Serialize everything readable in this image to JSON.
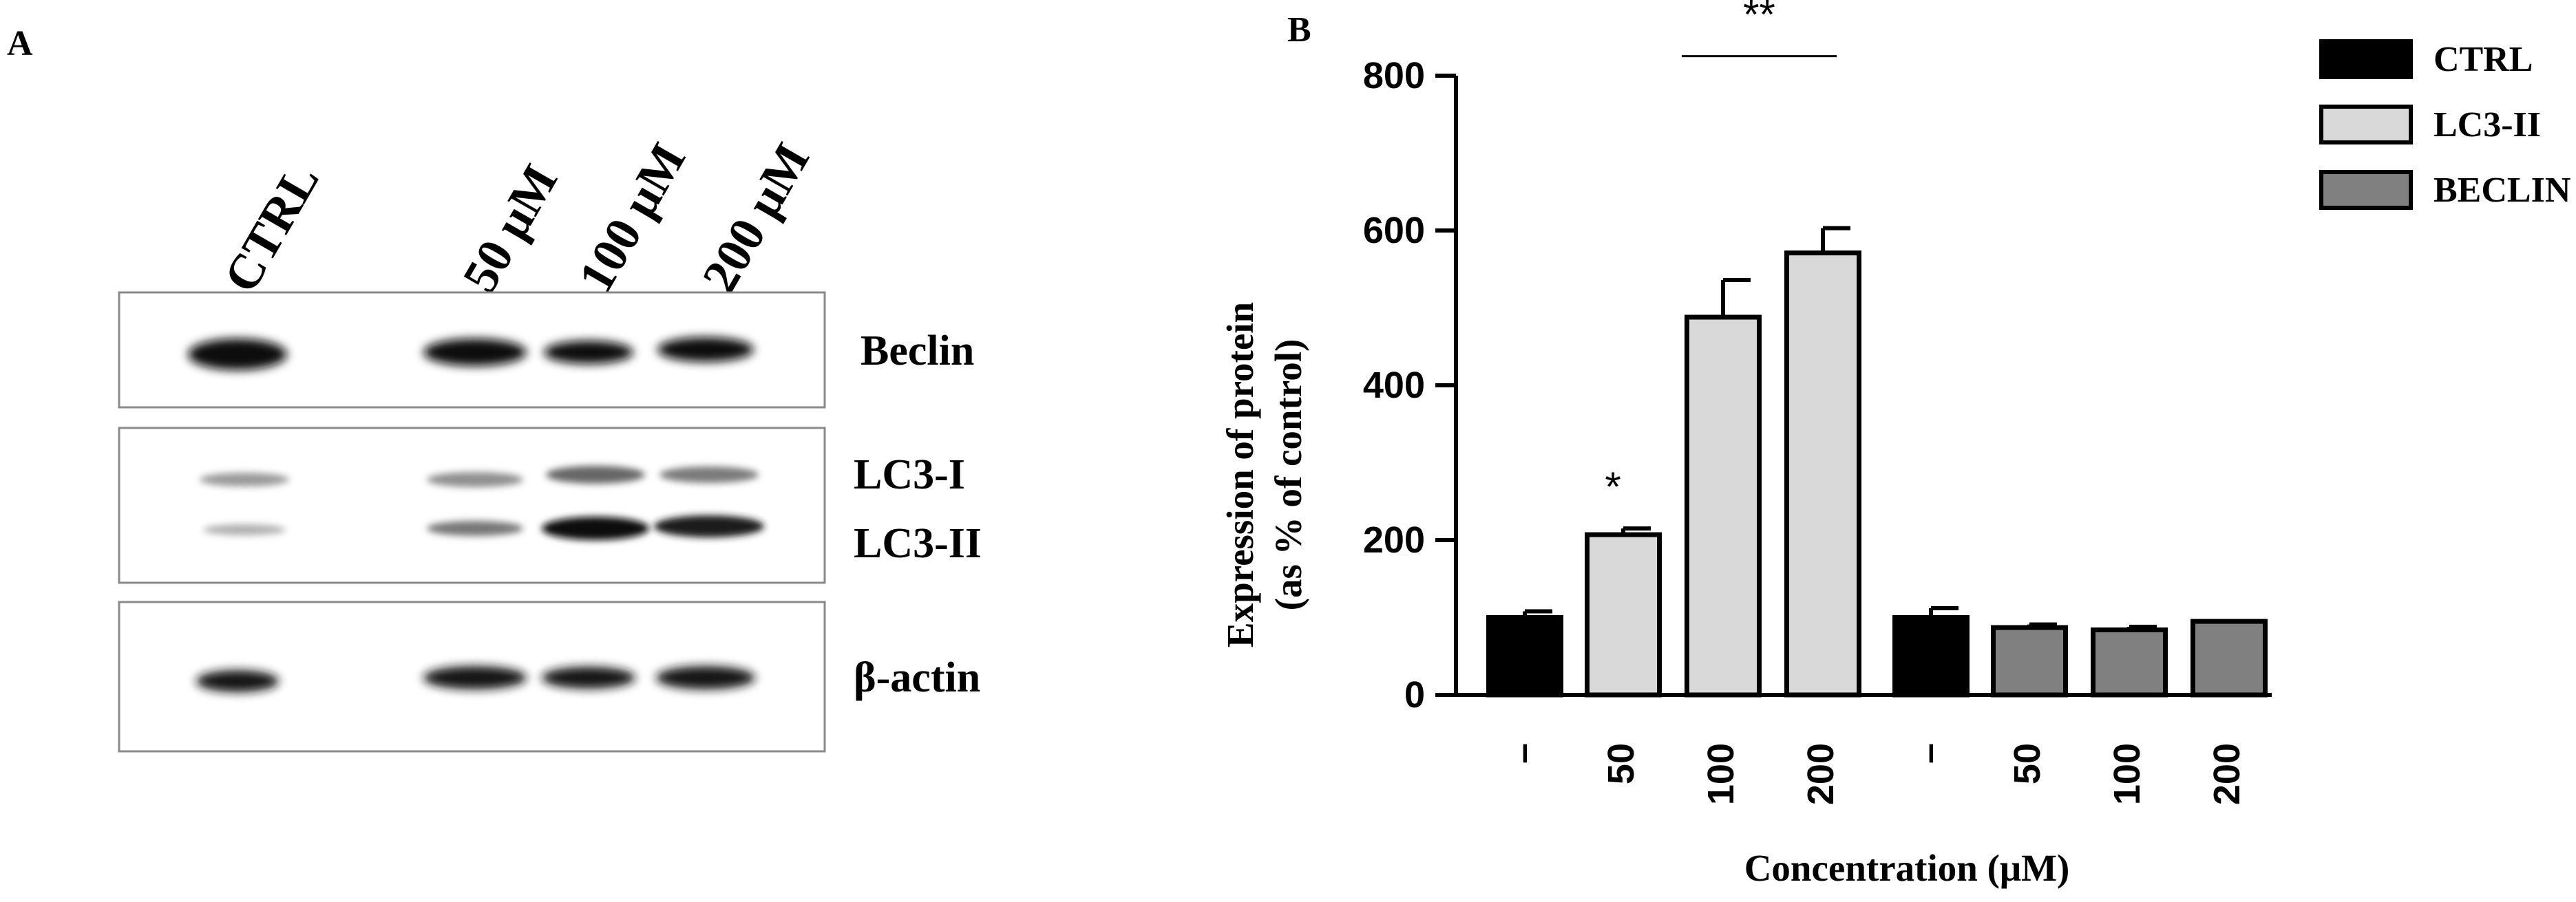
{
  "panel_a": {
    "label": "A",
    "lanes": [
      "CTRL",
      "50 μM",
      "100 μM",
      "200 μM"
    ],
    "blots": [
      "Beclin",
      "LC3-I",
      "LC3-II",
      "β-actin"
    ]
  },
  "panel_b": {
    "label": "B"
  },
  "chart_data": {
    "type": "bar",
    "title": "",
    "ylabel_line1": "Expression of protein",
    "ylabel_line2": "(as % of control)",
    "xlabel": "Concentration  (μM)",
    "ylim": [
      0,
      800
    ],
    "yticks": [
      "0",
      "200",
      "400",
      "600",
      "800"
    ],
    "categories": [
      "–",
      "50",
      "100",
      "200",
      "–",
      "50",
      "100",
      "200"
    ],
    "series": [
      {
        "name": "CTRL",
        "color": "#000000",
        "values": [
          100,
          null,
          null,
          null,
          100,
          null,
          null,
          null
        ],
        "errors": [
          8,
          null,
          null,
          null,
          12,
          null,
          null,
          null
        ]
      },
      {
        "name": "LC3-II",
        "color": "#d9d9d9",
        "values": [
          null,
          207,
          488,
          571,
          null,
          null,
          null,
          null
        ],
        "errors": [
          null,
          8,
          48,
          32,
          null,
          null,
          null,
          null
        ]
      },
      {
        "name": "BECLIN",
        "color": "#808080",
        "values": [
          null,
          null,
          null,
          null,
          null,
          87,
          84,
          95
        ],
        "errors": [
          null,
          null,
          null,
          null,
          null,
          4,
          4,
          0
        ]
      }
    ],
    "annotations": [
      {
        "text": "*",
        "over": [
          1
        ]
      },
      {
        "text": "**",
        "over": [
          2,
          3
        ]
      }
    ],
    "legend": "top-right",
    "grid": false
  }
}
